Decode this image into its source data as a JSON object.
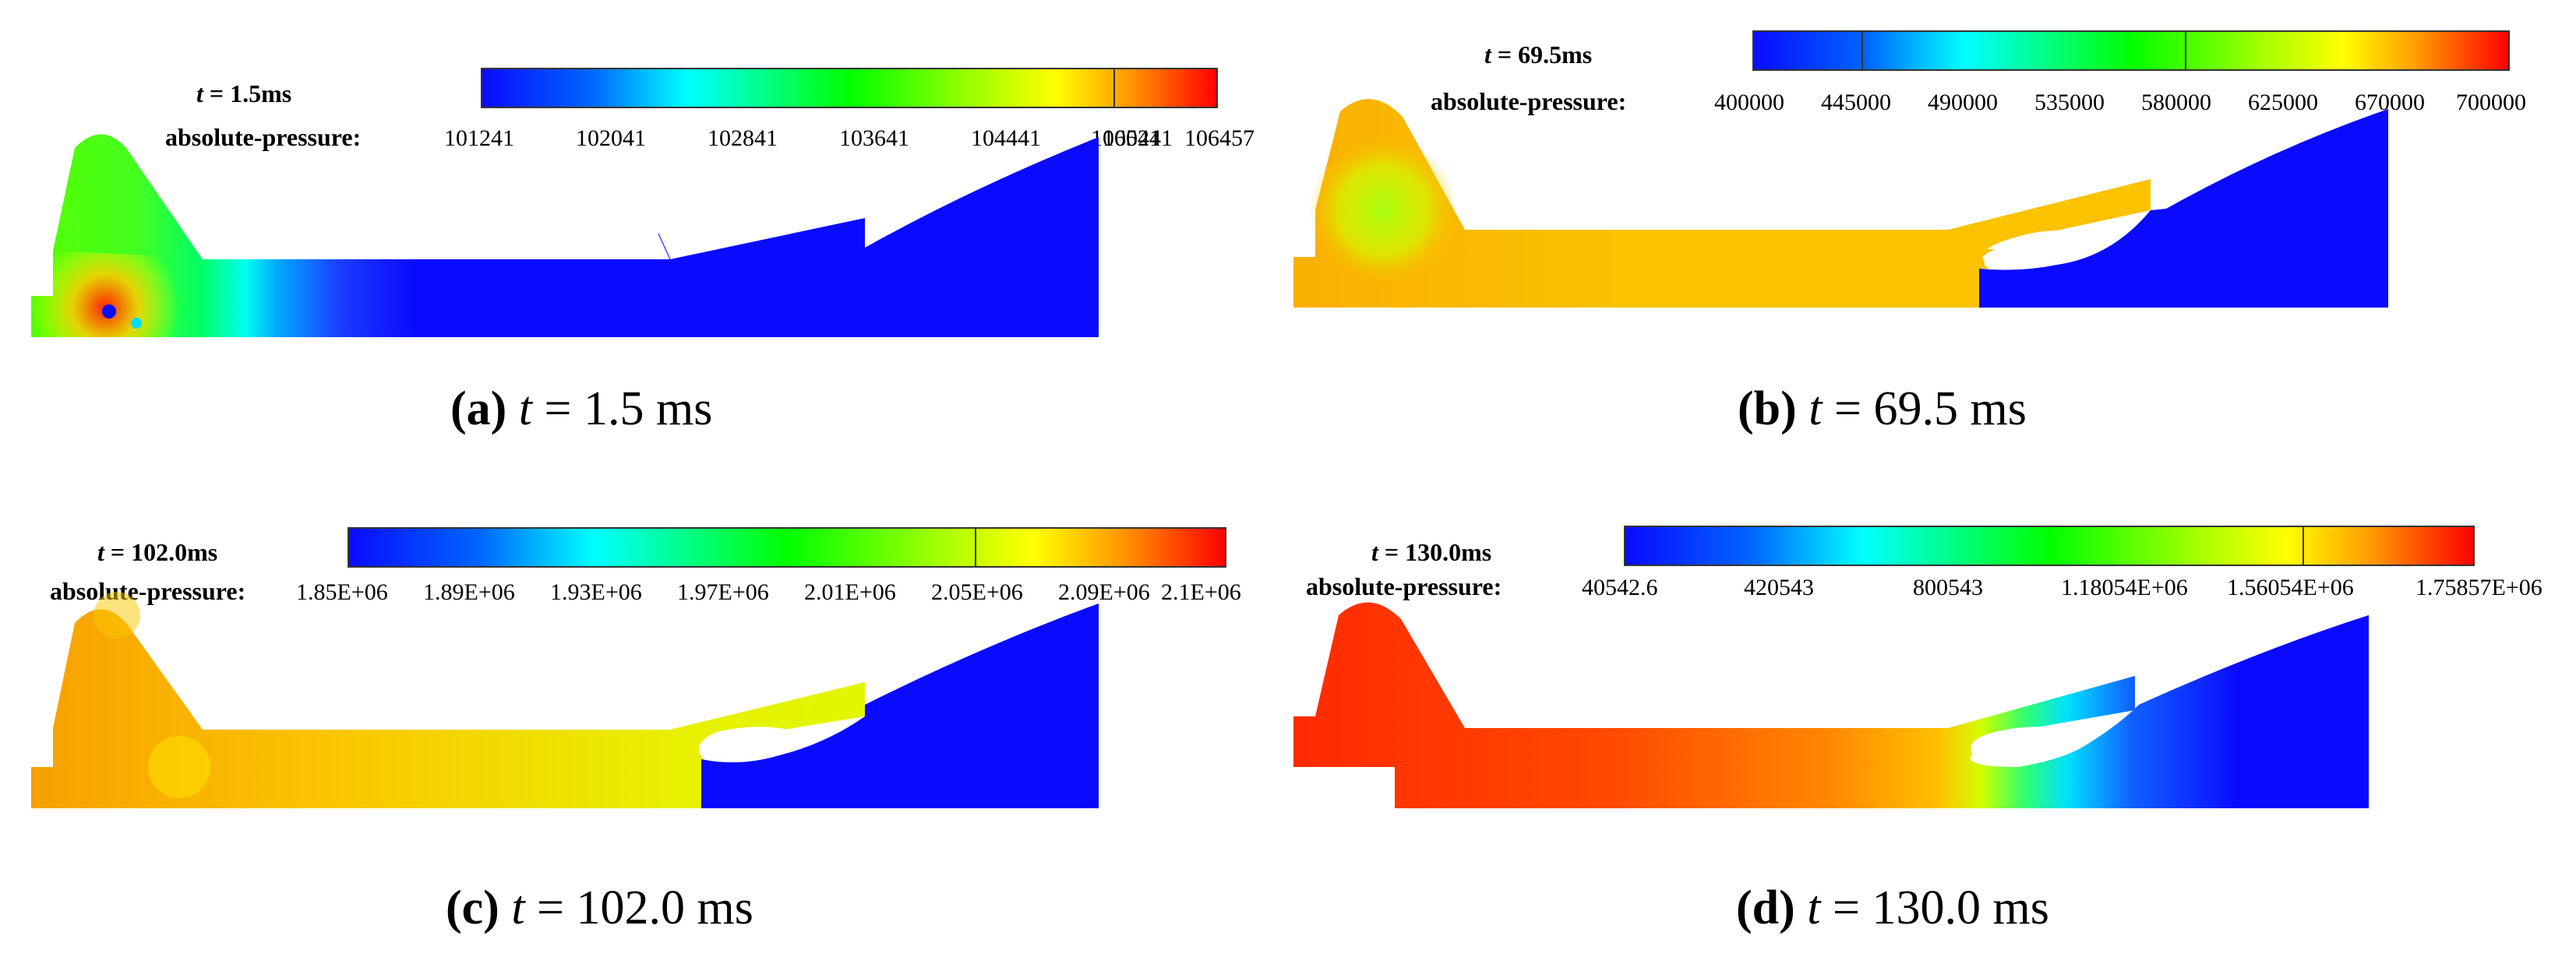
{
  "figure": {
    "panels": [
      {
        "id": "a",
        "time_label": "t = 1.5ms",
        "quantity_label": "absolute-pressure:",
        "ticks": [
          "101241",
          "102041",
          "102841",
          "103641",
          "104441",
          "105241",
          "106041",
          "106457"
        ],
        "caption_letter": "(a)",
        "caption_var": "t",
        "caption_text": " = 1.5 ms"
      },
      {
        "id": "b",
        "time_label": "t = 69.5ms",
        "quantity_label": "absolute-pressure:",
        "ticks": [
          "400000",
          "445000",
          "490000",
          "535000",
          "580000",
          "625000",
          "670000",
          "700000"
        ],
        "caption_letter": "(b)",
        "caption_var": "t",
        "caption_text": " = 69.5 ms"
      },
      {
        "id": "c",
        "time_label": "t = 102.0ms",
        "quantity_label": "absolute-pressure:",
        "ticks": [
          "1.85E+06",
          "1.89E+06",
          "1.93E+06",
          "1.97E+06",
          "2.01E+06",
          "2.05E+06",
          "2.09E+06",
          "2.1E+06"
        ],
        "caption_letter": "(c)",
        "caption_var": "t",
        "caption_text": " = 102.0 ms"
      },
      {
        "id": "d",
        "time_label": "t = 130.0ms",
        "quantity_label": "absolute-pressure:",
        "ticks": [
          "40542.6",
          "420543",
          "800543",
          "1.18054E+06",
          "1.56054E+06",
          "1.75857E+06"
        ],
        "caption_letter": "(d)",
        "caption_var": "t",
        "caption_text": " = 130.0 ms"
      }
    ],
    "colors": {
      "blue": "#0a0aff",
      "cyan": "#00ffff",
      "green": "#00ff00",
      "yellow": "#ffff00",
      "orange": "#ff8800",
      "red": "#ff0000"
    }
  }
}
